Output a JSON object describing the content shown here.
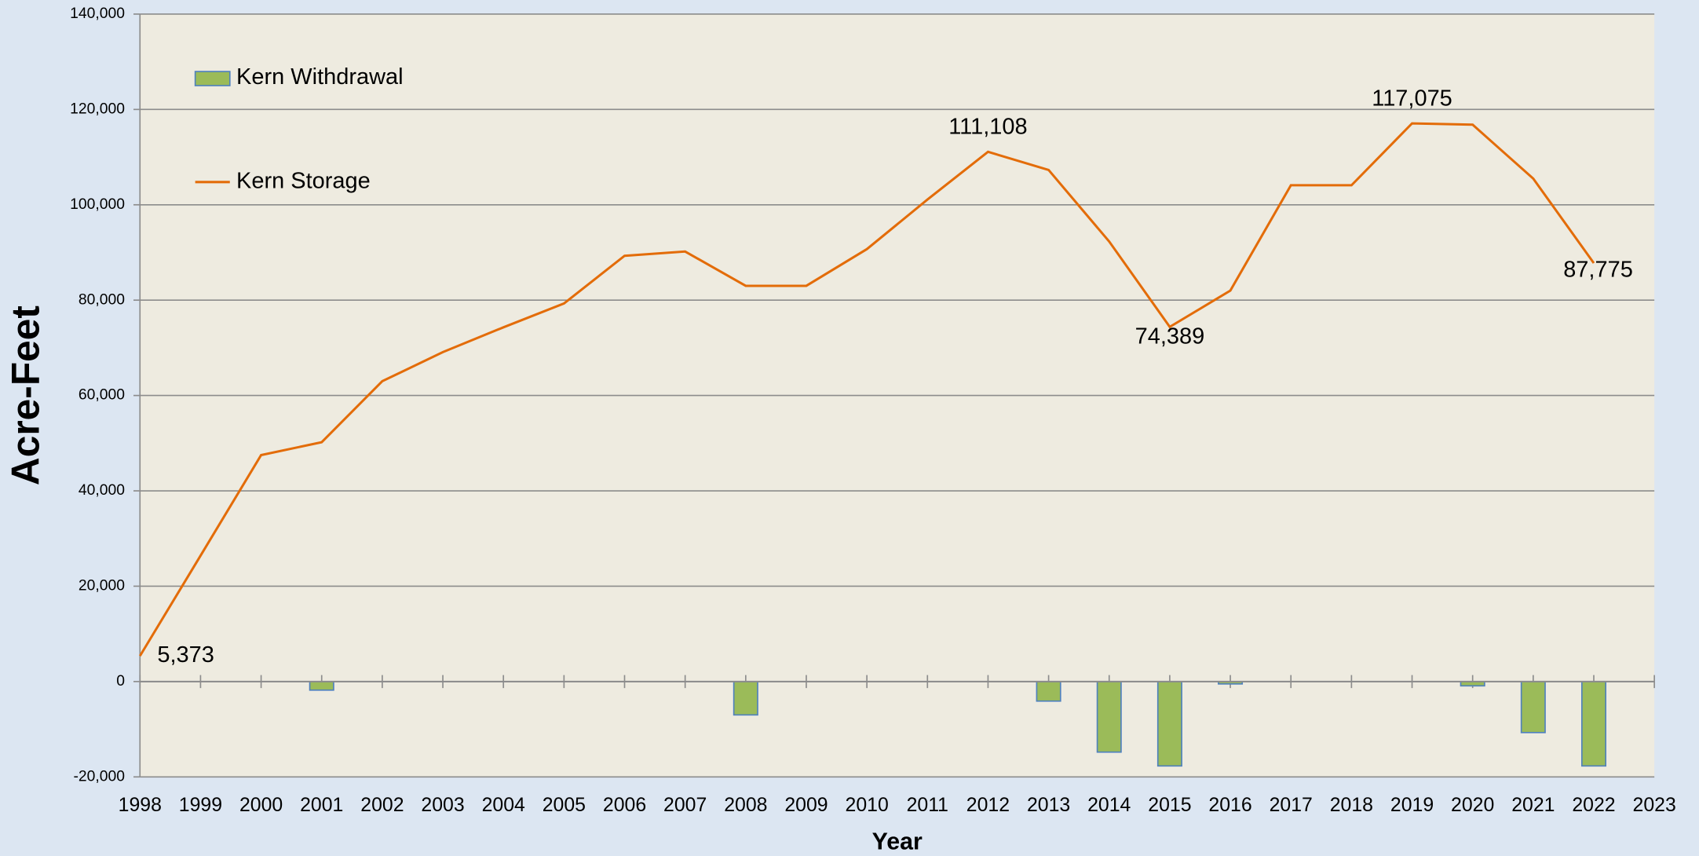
{
  "chart_data": {
    "type": "combo",
    "x_label": "Year",
    "y_label": "Acre-Feet",
    "x": [
      1998,
      1999,
      2000,
      2001,
      2002,
      2003,
      2004,
      2005,
      2006,
      2007,
      2008,
      2009,
      2010,
      2011,
      2012,
      2013,
      2014,
      2015,
      2016,
      2017,
      2018,
      2019,
      2020,
      2021,
      2022
    ],
    "xlim": [
      1998,
      2023
    ],
    "xticks": [
      1998,
      1999,
      2000,
      2001,
      2002,
      2003,
      2004,
      2005,
      2006,
      2007,
      2008,
      2009,
      2010,
      2011,
      2012,
      2013,
      2014,
      2015,
      2016,
      2017,
      2018,
      2019,
      2020,
      2021,
      2022,
      2023
    ],
    "ylim": [
      -20000,
      140000
    ],
    "yticks": [
      {
        "value": -20000,
        "label": "-20,000"
      },
      0,
      {
        "value": 20000,
        "label": "20,000"
      },
      {
        "value": 40000,
        "label": "40,000"
      },
      {
        "value": 60000,
        "label": "60,000"
      },
      {
        "value": 80000,
        "label": "80,000"
      },
      {
        "value": 100000,
        "label": "100,000"
      },
      {
        "value": 120000,
        "label": "120,000"
      },
      {
        "value": 140000,
        "label": "140,000"
      }
    ],
    "grid": true,
    "legend": "upper left",
    "series": [
      {
        "name": "Kern Withdrawal",
        "type": "bar",
        "color": "#9bbb59",
        "edge_color": "#4f81bd",
        "values": [
          0,
          0,
          0,
          -1800,
          0,
          0,
          0,
          0,
          0,
          0,
          -7000,
          0,
          0,
          0,
          0,
          -4100,
          -14800,
          -17700,
          -500,
          0,
          0,
          0,
          -900,
          -10700,
          -17700
        ]
      },
      {
        "name": "Kern Storage",
        "type": "line",
        "color": "#e36c09",
        "values": [
          5373,
          26400,
          47500,
          50200,
          63000,
          69100,
          74300,
          79300,
          89300,
          90200,
          83000,
          83000,
          90700,
          101100,
          111108,
          107300,
          92300,
          74389,
          82000,
          104100,
          104100,
          117075,
          116800,
          105500,
          87775
        ],
        "value_labels": [
          "5,373",
          null,
          null,
          null,
          null,
          null,
          null,
          null,
          null,
          null,
          null,
          null,
          null,
          null,
          "111,108",
          null,
          null,
          "74,389",
          null,
          null,
          null,
          "117,075",
          null,
          null,
          "87,775"
        ]
      }
    ]
  }
}
